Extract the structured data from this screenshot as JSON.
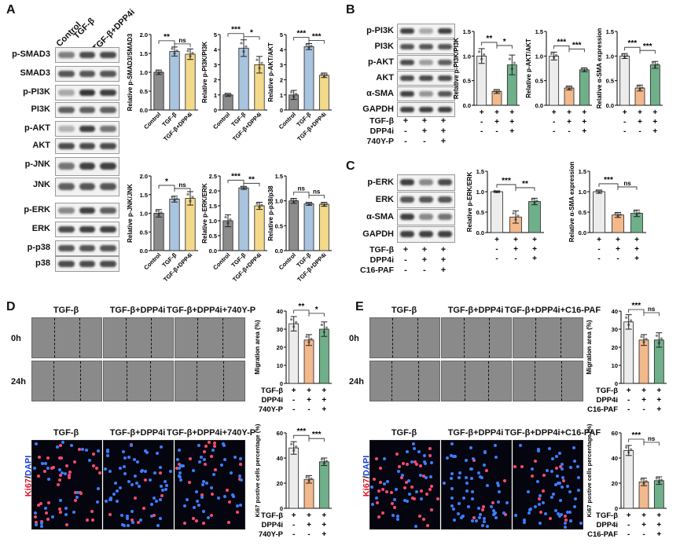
{
  "panels": {
    "A": {
      "letter": "A",
      "lanes": [
        "Control",
        "TGF-β",
        "TGF-β+DPP4i"
      ],
      "blot_rows": [
        "p-SMAD3",
        "SMAD3",
        "p-PI3K",
        "PI3K",
        "p-AKT",
        "AKT",
        "p-JNK",
        "JNK",
        "p-ERK",
        "ERK",
        "p-p38",
        "p38"
      ],
      "stats_row1": [
        "**",
        "ns",
        "***",
        "*",
        "***",
        "***"
      ],
      "stats_row2": [
        "*",
        "ns",
        "***",
        "**",
        "ns",
        "ns"
      ]
    },
    "B": {
      "letter": "B",
      "blot_rows": [
        "p-PI3K",
        "PI3K",
        "p-AKT",
        "AKT",
        "α-SMA",
        "GAPDH"
      ],
      "treat_rows": [
        {
          "label": "TGF-β",
          "signs": [
            "+",
            "+",
            "+"
          ]
        },
        {
          "label": "DPP4i",
          "signs": [
            "-",
            "+",
            "+"
          ]
        },
        {
          "label": "740Y-P",
          "signs": [
            "-",
            "-",
            "+"
          ]
        }
      ],
      "stats": [
        "**",
        "*",
        "***",
        "***",
        "***",
        "***"
      ]
    },
    "C": {
      "letter": "C",
      "blot_rows": [
        "p-ERK",
        "ERK",
        "α-SMA",
        "GAPDH"
      ],
      "treat_rows": [
        {
          "label": "TGF-β",
          "signs": [
            "+",
            "+",
            "+"
          ]
        },
        {
          "label": "DPP4i",
          "signs": [
            "-",
            "+",
            "+"
          ]
        },
        {
          "label": "C16-PAF",
          "signs": [
            "-",
            "-",
            "+"
          ]
        }
      ],
      "stats": [
        "***",
        "**",
        "***",
        "ns"
      ]
    },
    "D": {
      "letter": "D",
      "conditions": [
        "TGF-β",
        "TGF-β+DPP4i",
        "TGF-β+DPP4i+740Y-P"
      ],
      "times": [
        "0h",
        "24h"
      ],
      "stain_red": "Ki67",
      "stain_sep": "/",
      "stain_blue": "DAPI",
      "treat_rows": [
        {
          "label": "TGF-β",
          "signs": [
            "+",
            "+",
            "+"
          ]
        },
        {
          "label": "DPP4i",
          "signs": [
            "-",
            "+",
            "+"
          ]
        },
        {
          "label": "740Y-P",
          "signs": [
            "-",
            "-",
            "+"
          ]
        }
      ],
      "stats_mig": [
        "**",
        "*"
      ],
      "stats_ki": [
        "***",
        "***"
      ]
    },
    "E": {
      "letter": "E",
      "conditions": [
        "TGF-β",
        "TGF-β+DPP4i",
        "TGF-β+DPP4i+C16-PAF"
      ],
      "times": [
        "0h",
        "24h"
      ],
      "stain_red": "Ki67",
      "stain_sep": "/",
      "stain_blue": "DAPI",
      "treat_rows": [
        {
          "label": "TGF-β",
          "signs": [
            "+",
            "+",
            "+"
          ]
        },
        {
          "label": "DPP4i",
          "signs": [
            "-",
            "+",
            "+"
          ]
        },
        {
          "label": "C16-PAF",
          "signs": [
            "-",
            "-",
            "+"
          ]
        }
      ],
      "stats_mig": [
        "***",
        "ns"
      ],
      "stats_ki": [
        "***",
        "ns"
      ]
    }
  },
  "colors": {
    "control": "#8c8c8c",
    "tgf": "#a9c4de",
    "dpp4i": "#f3d98a",
    "b_ctrl": "#ececec",
    "b_dpp": "#f2b98c",
    "b_rescue": "#6fb08a",
    "ki67": "#ff4a6e",
    "dapi": "#3d7dff"
  },
  "chart_data": [
    {
      "id": "A1",
      "type": "bar",
      "ylabel": "Relative p-SMAD3/SMAD3",
      "categories": [
        "Control",
        "TGF-β",
        "TGF-β+DPP4i"
      ],
      "values": [
        1.0,
        1.55,
        1.48
      ],
      "errors": [
        0.06,
        0.12,
        0.14
      ],
      "ylim": [
        0,
        2.0
      ],
      "yticks": [
        0.0,
        0.5,
        1.0,
        1.5,
        2.0
      ],
      "stats": [
        "**",
        "ns"
      ]
    },
    {
      "id": "A2",
      "type": "bar",
      "ylabel": "Relative p-PI3K/PI3K",
      "categories": [
        "Control",
        "TGF-β",
        "TGF-β+DPP4i"
      ],
      "values": [
        1.0,
        4.1,
        3.0
      ],
      "errors": [
        0.1,
        0.55,
        0.55
      ],
      "ylim": [
        0,
        5
      ],
      "yticks": [
        0,
        1,
        2,
        3,
        4,
        5
      ],
      "stats": [
        "***",
        "*"
      ]
    },
    {
      "id": "A3",
      "type": "bar",
      "ylabel": "Relative p-AKT/AKT",
      "categories": [
        "Control",
        "TGF-β",
        "TGF-β+DPP4i"
      ],
      "values": [
        1.0,
        4.2,
        2.3
      ],
      "errors": [
        0.3,
        0.2,
        0.15
      ],
      "ylim": [
        0,
        5
      ],
      "yticks": [
        0,
        1,
        2,
        3,
        4,
        5
      ],
      "stats": [
        "***",
        "***"
      ]
    },
    {
      "id": "A4",
      "type": "bar",
      "ylabel": "Relative p-JNK/JNK",
      "categories": [
        "Control",
        "TGF-β",
        "TGF-β+DPP4i"
      ],
      "values": [
        1.0,
        1.38,
        1.4
      ],
      "errors": [
        0.1,
        0.08,
        0.18
      ],
      "ylim": [
        0,
        2.0
      ],
      "yticks": [
        0.0,
        0.5,
        1.0,
        1.5,
        2.0
      ],
      "stats": [
        "*",
        "ns"
      ]
    },
    {
      "id": "A5",
      "type": "bar",
      "ylabel": "Relative p-ERK/ERK",
      "categories": [
        "Control",
        "TGF-β",
        "TGF-β+DPP4i"
      ],
      "values": [
        1.0,
        2.1,
        1.5
      ],
      "errors": [
        0.2,
        0.05,
        0.12
      ],
      "ylim": [
        0,
        2.5
      ],
      "yticks": [
        0.0,
        0.5,
        1.0,
        1.5,
        2.0,
        2.5
      ],
      "stats": [
        "***",
        "**"
      ]
    },
    {
      "id": "A6",
      "type": "bar",
      "ylabel": "Relative p-p38/p38",
      "categories": [
        "Control",
        "TGF-β",
        "TGF-β+DPP4i"
      ],
      "values": [
        1.0,
        0.94,
        0.93
      ],
      "errors": [
        0.05,
        0.03,
        0.04
      ],
      "ylim": [
        0,
        1.5
      ],
      "yticks": [
        0.0,
        0.5,
        1.0,
        1.5
      ],
      "stats": [
        "ns",
        "ns"
      ]
    },
    {
      "id": "B1",
      "type": "bar",
      "ylabel": "Relative p-PI3K/PI3K",
      "values": [
        1.0,
        0.28,
        0.82
      ],
      "errors": [
        0.15,
        0.04,
        0.2
      ],
      "ylim": [
        0,
        1.5
      ],
      "yticks": [
        0.0,
        0.5,
        1.0,
        1.5
      ],
      "stats": [
        "**",
        "*"
      ]
    },
    {
      "id": "B2",
      "type": "bar",
      "ylabel": "Relative p-AKT/AKT",
      "values": [
        1.0,
        0.35,
        0.72
      ],
      "errors": [
        0.08,
        0.04,
        0.04
      ],
      "ylim": [
        0,
        1.5
      ],
      "yticks": [
        0.0,
        0.5,
        1.0,
        1.5
      ],
      "stats": [
        "***",
        "***"
      ]
    },
    {
      "id": "B3",
      "type": "bar",
      "ylabel": "Relative α-SMA expression",
      "values": [
        1.0,
        0.35,
        0.82
      ],
      "errors": [
        0.05,
        0.06,
        0.07
      ],
      "ylim": [
        0,
        1.5
      ],
      "yticks": [
        0.0,
        0.5,
        1.0,
        1.5
      ],
      "stats": [
        "***",
        "***"
      ]
    },
    {
      "id": "C1",
      "type": "bar",
      "ylabel": "Relative p-ERK/ERK",
      "values": [
        1.0,
        0.38,
        0.76
      ],
      "errors": [
        0.02,
        0.15,
        0.08
      ],
      "ylim": [
        0,
        1.5
      ],
      "yticks": [
        0.0,
        0.5,
        1.0,
        1.5
      ],
      "stats": [
        "***",
        "**"
      ]
    },
    {
      "id": "C2",
      "type": "bar",
      "ylabel": "Relative α-SMA expression",
      "values": [
        1.0,
        0.43,
        0.47
      ],
      "errors": [
        0.04,
        0.06,
        0.08
      ],
      "ylim": [
        0,
        1.5
      ],
      "yticks": [
        0.0,
        0.5,
        1.0,
        1.5
      ],
      "stats": [
        "***",
        "ns"
      ]
    },
    {
      "id": "D1",
      "type": "bar",
      "ylabel": "Migration area (%)",
      "values": [
        33,
        24,
        30
      ],
      "errors": [
        4,
        3,
        4
      ],
      "ylim": [
        0,
        40
      ],
      "yticks": [
        0,
        10,
        20,
        30,
        40
      ],
      "stats": [
        "**",
        "*"
      ]
    },
    {
      "id": "D2",
      "type": "bar",
      "ylabel": "Ki67 postive cells percentage (%)",
      "values": [
        48,
        23,
        37
      ],
      "errors": [
        5,
        3,
        3
      ],
      "ylim": [
        0,
        60
      ],
      "yticks": [
        0,
        20,
        40,
        60
      ],
      "stats": [
        "***",
        "***"
      ]
    },
    {
      "id": "E1",
      "type": "bar",
      "ylabel": "Migration area (%)",
      "values": [
        34,
        24,
        24
      ],
      "errors": [
        4,
        3,
        4
      ],
      "ylim": [
        0,
        40
      ],
      "yticks": [
        0,
        10,
        20,
        30,
        40
      ],
      "stats": [
        "***",
        "ns"
      ]
    },
    {
      "id": "E2",
      "type": "bar",
      "ylabel": "Ki67 postive cells percentage (%)",
      "values": [
        46,
        21,
        22
      ],
      "errors": [
        4,
        3,
        3
      ],
      "ylim": [
        0,
        60
      ],
      "yticks": [
        0,
        20,
        40,
        60
      ],
      "stats": [
        "***",
        "ns"
      ]
    }
  ]
}
